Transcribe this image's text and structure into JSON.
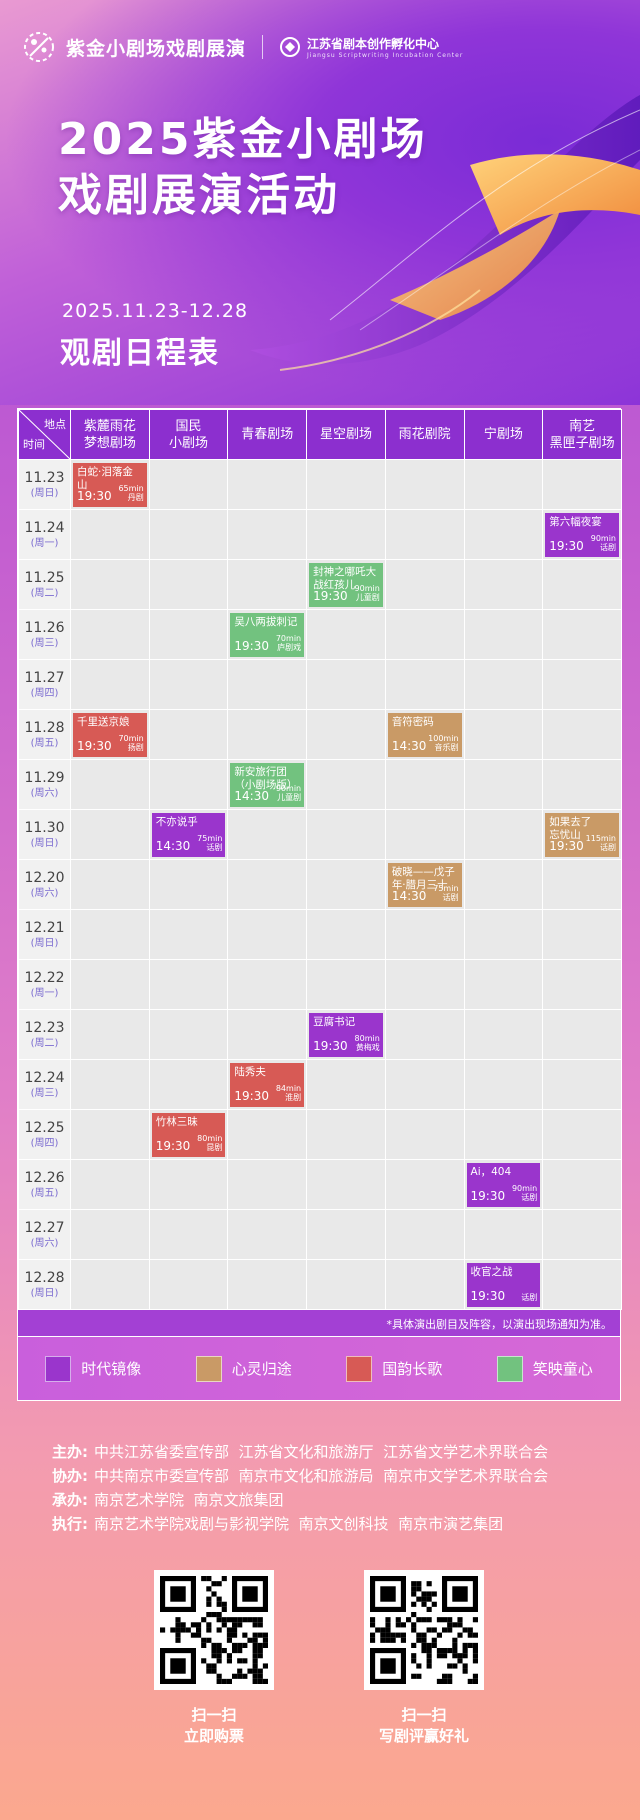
{
  "header": {
    "logo_title": "紫金小剧场戏剧展演",
    "partner_cn": "江苏省剧本创作孵化中心",
    "partner_en": "Jiangsu Scriptwriting Incubation Center",
    "title_line1": "2025紫金小剧场",
    "title_line2": "戏剧展演活动",
    "date_range": "2025.11.23-12.28",
    "subtitle": "观剧日程表"
  },
  "table": {
    "corner_top": "地点",
    "corner_bottom": "时间",
    "venues": [
      "紫麓雨花\n梦想剧场",
      "国民\n小剧场",
      "青春剧场",
      "星空剧场",
      "雨花剧院",
      "宁剧场",
      "南艺\n黑匣子剧场"
    ],
    "rows": [
      {
        "date": "11.23",
        "weekday": "(周日)",
        "events": [
          {
            "col": 0,
            "name": "白蛇·泪落金山",
            "time": "19:30",
            "duration": "65min",
            "genre": "丹剧",
            "category": "guoyun"
          }
        ]
      },
      {
        "date": "11.24",
        "weekday": "(周一)",
        "events": [
          {
            "col": 6,
            "name": "第六幅夜宴",
            "time": "19:30",
            "duration": "90min",
            "genre": "话剧",
            "category": "shidai"
          }
        ]
      },
      {
        "date": "11.25",
        "weekday": "(周二)",
        "events": [
          {
            "col": 3,
            "name": "封神之哪吒大战红孩儿",
            "time": "19:30",
            "duration": "90min",
            "genre": "儿童剧",
            "category": "xiaoying"
          }
        ]
      },
      {
        "date": "11.26",
        "weekday": "(周三)",
        "events": [
          {
            "col": 2,
            "name": "吴八两拔刺记",
            "time": "19:30",
            "duration": "70min",
            "genre": "庐剧戏",
            "category": "xiaoying"
          }
        ]
      },
      {
        "date": "11.27",
        "weekday": "(周四)",
        "events": []
      },
      {
        "date": "11.28",
        "weekday": "(周五)",
        "events": [
          {
            "col": 0,
            "name": "千里送京娘",
            "time": "19:30",
            "duration": "70min",
            "genre": "扬剧",
            "category": "guoyun"
          },
          {
            "col": 4,
            "name": "音符密码",
            "time": "14:30",
            "duration": "100min",
            "genre": "音乐剧",
            "category": "xinling"
          }
        ]
      },
      {
        "date": "11.29",
        "weekday": "(周六)",
        "events": [
          {
            "col": 2,
            "name": "新安旅行团\n（小剧场版）",
            "time": "14:30",
            "duration": "90min",
            "genre": "儿童剧",
            "category": "xiaoying"
          }
        ]
      },
      {
        "date": "11.30",
        "weekday": "(周日)",
        "events": [
          {
            "col": 1,
            "name": "不亦说乎",
            "time": "14:30",
            "duration": "75min",
            "genre": "话剧",
            "category": "shidai"
          },
          {
            "col": 6,
            "name": "如果去了\n忘忧山",
            "time": "19:30",
            "duration": "115min",
            "genre": "话剧",
            "category": "xinling"
          }
        ]
      },
      {
        "date": "12.20",
        "weekday": "(周六)",
        "events": [
          {
            "col": 4,
            "name": "破晓——戊子年·腊月三十",
            "time": "14:30",
            "duration": "75min",
            "genre": "话剧",
            "category": "xinling"
          }
        ]
      },
      {
        "date": "12.21",
        "weekday": "(周日)",
        "events": []
      },
      {
        "date": "12.22",
        "weekday": "(周一)",
        "events": []
      },
      {
        "date": "12.23",
        "weekday": "(周二)",
        "events": [
          {
            "col": 3,
            "name": "豆腐书记",
            "time": "19:30",
            "duration": "80min",
            "genre": "黄梅戏",
            "category": "shidai"
          }
        ]
      },
      {
        "date": "12.24",
        "weekday": "(周三)",
        "events": [
          {
            "col": 2,
            "name": "陆秀夫",
            "time": "19:30",
            "duration": "84min",
            "genre": "淮剧",
            "category": "guoyun"
          }
        ]
      },
      {
        "date": "12.25",
        "weekday": "(周四)",
        "events": [
          {
            "col": 1,
            "name": "竹林三昧",
            "time": "19:30",
            "duration": "80min",
            "genre": "昆剧",
            "category": "guoyun"
          }
        ]
      },
      {
        "date": "12.26",
        "weekday": "(周五)",
        "events": [
          {
            "col": 5,
            "name": "Ai，404",
            "time": "19:30",
            "duration": "90min",
            "genre": "话剧",
            "category": "shidai"
          }
        ]
      },
      {
        "date": "12.27",
        "weekday": "(周六)",
        "events": []
      },
      {
        "date": "12.28",
        "weekday": "(周日)",
        "events": [
          {
            "col": 5,
            "name": "收官之战",
            "time": "19:30",
            "duration": "",
            "genre": "话剧",
            "category": "shidai"
          }
        ]
      }
    ],
    "note": "*具体演出剧目及阵容，以演出现场通知为准。"
  },
  "legend": [
    {
      "label": "时代镜像",
      "color": "#9a35cc"
    },
    {
      "label": "心灵归途",
      "color": "#c99a66"
    },
    {
      "label": "国韵长歌",
      "color": "#d75a55"
    },
    {
      "label": "笑映童心",
      "color": "#72c27f"
    }
  ],
  "orgs": [
    {
      "label": "主办:",
      "value": "中共江苏省委宣传部  江苏省文化和旅游厅  江苏省文学艺术界联合会"
    },
    {
      "label": "协办:",
      "value": "中共南京市委宣传部  南京市文化和旅游局  南京市文学艺术界联合会"
    },
    {
      "label": "承办:",
      "value": "南京艺术学院  南京文旅集团"
    },
    {
      "label": "执行:",
      "value": "南京艺术学院戏剧与影视学院  南京文创科技  南京市演艺集团"
    }
  ],
  "qr": [
    {
      "line1": "扫一扫",
      "line2": "立即购票"
    },
    {
      "line1": "扫一扫",
      "line2": "写剧评赢好礼"
    }
  ],
  "colors": {
    "header_purple": "#8c2fcf",
    "note_purple": "#a340d4"
  }
}
